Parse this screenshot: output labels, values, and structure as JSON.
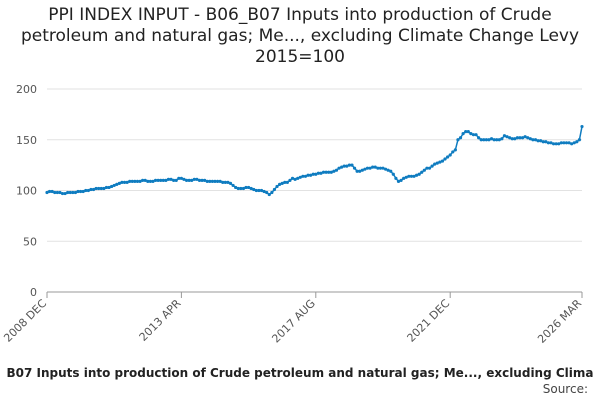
{
  "chart_data": {
    "type": "line",
    "title": "PPI INDEX INPUT - B06_B07 Inputs into production of Crude petroleum and natural gas; Me..., excluding Climate Change Levy 2015=100",
    "source": "Source:",
    "ylim": [
      0,
      200
    ],
    "yticks": [
      0,
      50,
      100,
      150,
      200
    ],
    "grid": true,
    "categories": [
      "2008 DEC",
      null,
      null,
      null,
      null,
      null,
      null,
      null,
      null,
      null,
      null,
      null,
      null,
      null,
      null,
      null,
      null,
      null,
      null,
      null,
      null,
      null,
      null,
      null,
      null,
      null,
      null,
      null,
      null,
      null,
      null,
      null,
      null,
      null,
      null,
      null,
      null,
      null,
      null,
      null,
      null,
      null,
      null,
      null,
      null,
      null,
      null,
      null,
      null,
      null,
      null,
      null,
      "2013 APR",
      null,
      null,
      null,
      null,
      null,
      null,
      null,
      null,
      null,
      null,
      null,
      null,
      null,
      null,
      null,
      null,
      null,
      null,
      null,
      null,
      null,
      null,
      null,
      null,
      null,
      null,
      null,
      null,
      null,
      null,
      null,
      null,
      null,
      null,
      null,
      null,
      null,
      null,
      null,
      null,
      null,
      null,
      null,
      null,
      null,
      null,
      null,
      null,
      null,
      null,
      null,
      "2017 AUG",
      null,
      null,
      null,
      null,
      null,
      null,
      null,
      null,
      null,
      null,
      null,
      null,
      null,
      null,
      null,
      null,
      null,
      null,
      null,
      null,
      null,
      null,
      null,
      null,
      null,
      null,
      null,
      null,
      null,
      null,
      null,
      null,
      null,
      null,
      null,
      null,
      null,
      null,
      null,
      null,
      null,
      null,
      null,
      null,
      null,
      null,
      null,
      null,
      null,
      null,
      null,
      "2021 DEC",
      null,
      null,
      null,
      null,
      null,
      null,
      null,
      null,
      null,
      null,
      null,
      null,
      null,
      null,
      null,
      null,
      null,
      null,
      null,
      null,
      null,
      null,
      null,
      null,
      null,
      null,
      null,
      null,
      null,
      null,
      null,
      null,
      null,
      null,
      null,
      null,
      null,
      null,
      null,
      null,
      null,
      null,
      null,
      null,
      null,
      null,
      null,
      null,
      null,
      null,
      "2026 MAR"
    ],
    "series": [
      {
        "name": "B07 Inputs into production of Crude petroleum and natural gas; Me..., excluding Clima",
        "color": "#0f7cc0",
        "values": [
          98,
          99,
          99,
          98,
          98,
          98,
          97,
          97,
          98,
          98,
          98,
          98,
          99,
          99,
          99,
          100,
          100,
          101,
          101,
          102,
          102,
          102,
          102,
          103,
          103,
          104,
          105,
          106,
          107,
          108,
          108,
          108,
          109,
          109,
          109,
          109,
          109,
          110,
          110,
          109,
          109,
          109,
          110,
          110,
          110,
          110,
          110,
          111,
          111,
          110,
          110,
          112,
          112,
          111,
          110,
          110,
          110,
          111,
          111,
          110,
          110,
          110,
          109,
          109,
          109,
          109,
          109,
          109,
          108,
          108,
          108,
          107,
          105,
          103,
          102,
          102,
          102,
          103,
          103,
          102,
          101,
          100,
          100,
          100,
          99,
          98,
          96,
          98,
          101,
          104,
          106,
          107,
          108,
          108,
          110,
          112,
          111,
          112,
          113,
          114,
          114,
          115,
          115,
          116,
          116,
          117,
          117,
          118,
          118,
          118,
          118,
          119,
          120,
          122,
          123,
          124,
          124,
          125,
          125,
          122,
          119,
          119,
          120,
          121,
          122,
          122,
          123,
          123,
          122,
          122,
          122,
          121,
          120,
          119,
          116,
          112,
          109,
          110,
          112,
          113,
          114,
          114,
          114,
          115,
          116,
          118,
          120,
          122,
          122,
          124,
          126,
          127,
          128,
          129,
          131,
          133,
          135,
          138,
          140,
          150,
          152,
          156,
          158,
          158,
          156,
          155,
          155,
          152,
          150,
          150,
          150,
          150,
          151,
          150,
          150,
          150,
          151,
          154,
          153,
          152,
          151,
          151,
          152,
          152,
          152,
          153,
          152,
          151,
          150,
          150,
          149,
          149,
          148,
          148,
          147,
          147,
          146,
          146,
          146,
          147,
          147,
          147,
          147,
          146,
          147,
          148,
          150,
          163
        ]
      }
    ]
  }
}
